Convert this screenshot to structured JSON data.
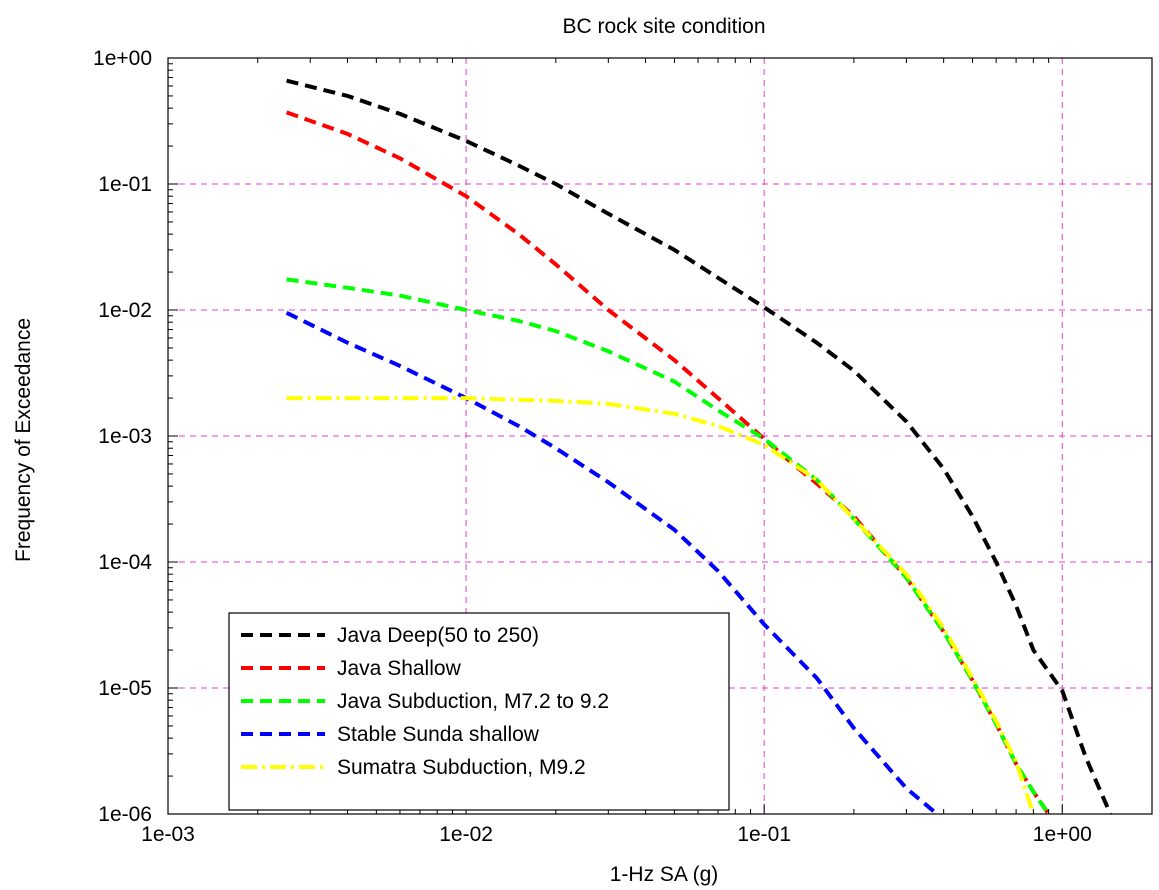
{
  "chart_data": {
    "type": "line",
    "title": "BC rock site condition",
    "xlabel": "1-Hz SA (g)",
    "ylabel": "Frequency of Exceedance",
    "xscale": "log",
    "yscale": "log",
    "xlim": [
      0.001,
      2.0
    ],
    "ylim": [
      1e-06,
      1
    ],
    "xticks": [
      {
        "value": 0.001,
        "label": "1e-03"
      },
      {
        "value": 0.01,
        "label": "1e-02"
      },
      {
        "value": 0.1,
        "label": "1e-01"
      },
      {
        "value": 1,
        "label": "1e+00"
      }
    ],
    "yticks": [
      {
        "value": 1,
        "label": "1e+00"
      },
      {
        "value": 0.1,
        "label": "1e-01"
      },
      {
        "value": 0.01,
        "label": "1e-02"
      },
      {
        "value": 0.001,
        "label": "1e-03"
      },
      {
        "value": 0.0001,
        "label": "1e-04"
      },
      {
        "value": 1e-05,
        "label": "1e-05"
      },
      {
        "value": 1e-06,
        "label": "1e-06"
      }
    ],
    "grid": true,
    "legend_position": "bottom-left",
    "series": [
      {
        "name": "Java Deep(50 to 250)",
        "color": "#000000",
        "dash": "dashed",
        "points": [
          [
            0.0025,
            0.66
          ],
          [
            0.004,
            0.5
          ],
          [
            0.006,
            0.36
          ],
          [
            0.01,
            0.22
          ],
          [
            0.015,
            0.14
          ],
          [
            0.02,
            0.1
          ],
          [
            0.03,
            0.058
          ],
          [
            0.05,
            0.03
          ],
          [
            0.07,
            0.018
          ],
          [
            0.1,
            0.0105
          ],
          [
            0.15,
            0.0055
          ],
          [
            0.2,
            0.0033
          ],
          [
            0.3,
            0.0013
          ],
          [
            0.4,
            0.00055
          ],
          [
            0.5,
            0.00023
          ],
          [
            0.6,
            0.0001
          ],
          [
            0.7,
            4.5e-05
          ],
          [
            0.8,
            2e-05
          ],
          [
            1.0,
            9.5e-06
          ],
          [
            1.2,
            2.8e-06
          ],
          [
            1.45,
            1e-06
          ]
        ]
      },
      {
        "name": "Java Shallow",
        "color": "#ff0000",
        "dash": "dashed",
        "points": [
          [
            0.0025,
            0.37
          ],
          [
            0.004,
            0.25
          ],
          [
            0.006,
            0.16
          ],
          [
            0.01,
            0.08
          ],
          [
            0.015,
            0.04
          ],
          [
            0.02,
            0.023
          ],
          [
            0.03,
            0.01
          ],
          [
            0.05,
            0.004
          ],
          [
            0.07,
            0.002
          ],
          [
            0.1,
            0.00095
          ],
          [
            0.12,
            0.00065
          ],
          [
            0.15,
            0.00042
          ],
          [
            0.2,
            0.00023
          ],
          [
            0.3,
            7.5e-05
          ],
          [
            0.4,
            2.8e-05
          ],
          [
            0.5,
            1.15e-05
          ],
          [
            0.6,
            5.2e-06
          ],
          [
            0.7,
            2.5e-06
          ],
          [
            0.8,
            1.5e-06
          ],
          [
            0.9,
            1e-06
          ]
        ]
      },
      {
        "name": "Java Subduction, M7.2 to 9.2",
        "color": "#00ff00",
        "dash": "dashed",
        "points": [
          [
            0.0025,
            0.0175
          ],
          [
            0.004,
            0.015
          ],
          [
            0.006,
            0.013
          ],
          [
            0.01,
            0.01
          ],
          [
            0.015,
            0.0082
          ],
          [
            0.02,
            0.0068
          ],
          [
            0.03,
            0.0047
          ],
          [
            0.05,
            0.0027
          ],
          [
            0.07,
            0.0016
          ],
          [
            0.1,
            0.00095
          ],
          [
            0.15,
            0.00045
          ],
          [
            0.2,
            0.00022
          ],
          [
            0.3,
            7.5e-05
          ],
          [
            0.4,
            2.8e-05
          ],
          [
            0.5,
            1.15e-05
          ],
          [
            0.6,
            5.2e-06
          ],
          [
            0.7,
            2.5e-06
          ],
          [
            0.8,
            1.5e-06
          ],
          [
            0.9,
            1e-06
          ]
        ]
      },
      {
        "name": "Stable Sunda shallow",
        "color": "#0000ff",
        "dash": "dashed",
        "points": [
          [
            0.0025,
            0.0095
          ],
          [
            0.004,
            0.0055
          ],
          [
            0.006,
            0.0036
          ],
          [
            0.01,
            0.002
          ],
          [
            0.015,
            0.0012
          ],
          [
            0.02,
            0.0008
          ],
          [
            0.03,
            0.00043
          ],
          [
            0.05,
            0.00018
          ],
          [
            0.07,
            8.5e-05
          ],
          [
            0.1,
            3.2e-05
          ],
          [
            0.15,
            1.2e-05
          ],
          [
            0.2,
            4.8e-06
          ],
          [
            0.3,
            1.6e-06
          ],
          [
            0.38,
            1e-06
          ]
        ]
      },
      {
        "name": "Sumatra Subduction, M9.2",
        "color": "#ffff00",
        "dash": "dashdot",
        "points": [
          [
            0.0025,
            0.002
          ],
          [
            0.005,
            0.002
          ],
          [
            0.01,
            0.002
          ],
          [
            0.02,
            0.0019
          ],
          [
            0.03,
            0.0018
          ],
          [
            0.05,
            0.0015
          ],
          [
            0.07,
            0.0012
          ],
          [
            0.1,
            0.00085
          ],
          [
            0.15,
            0.00045
          ],
          [
            0.2,
            0.00022
          ],
          [
            0.3,
            8e-05
          ],
          [
            0.4,
            3e-05
          ],
          [
            0.5,
            1.2e-05
          ],
          [
            0.6,
            5.5e-06
          ],
          [
            0.7,
            2.6e-06
          ],
          [
            0.8,
            1e-06
          ]
        ]
      }
    ]
  }
}
